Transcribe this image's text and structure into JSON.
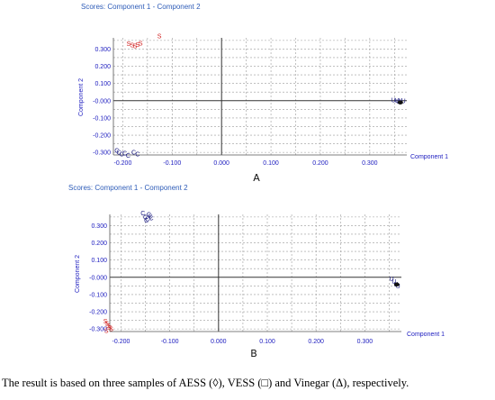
{
  "chart_data": [
    {
      "type": "scatter",
      "title": "Scores: Component 1 - Component 2",
      "xlabel": "Component 1",
      "ylabel": "Component 2",
      "xticks": [
        "-0.200",
        "-0.100",
        "0.000",
        "0.100",
        "0.200",
        "0.300"
      ],
      "yticks": [
        "0.300",
        "0.200",
        "0.100",
        "-0.000",
        "-0.100",
        "-0.200",
        "-0.300"
      ],
      "grid": true,
      "panel_label": "A",
      "series": [
        {
          "marker_text": "S",
          "color": "#d02020",
          "x": [
            -0.188,
            -0.181,
            -0.175,
            -0.17,
            -0.164,
            -0.126
          ],
          "y": [
            0.332,
            0.322,
            0.318,
            0.327,
            0.333,
            0.375
          ]
        },
        {
          "marker_text": "C",
          "color": "#1a1a80",
          "x": [
            -0.212,
            -0.208,
            -0.202,
            -0.196,
            -0.189,
            -0.178,
            -0.17
          ],
          "y": [
            -0.288,
            -0.299,
            -0.31,
            -0.305,
            -0.318,
            -0.3,
            -0.31
          ]
        },
        {
          "marker_text": "U",
          "color": "#1a1a80",
          "x": [
            0.348,
            0.355,
            0.358,
            0.362,
            0.368
          ],
          "y": [
            0.003,
            0.001,
            -0.004,
            0.002,
            -0.001
          ]
        }
      ]
    },
    {
      "type": "scatter",
      "title": "Scores: Component 1 - Component 2",
      "xlabel": "Component 1",
      "ylabel": "Component 2",
      "xticks": [
        "-0.200",
        "-0.100",
        "0.000",
        "0.100",
        "0.200",
        "0.300"
      ],
      "yticks": [
        "0.300",
        "0.200",
        "0.100",
        "-0.000",
        "-0.100",
        "-0.200",
        "-0.300"
      ],
      "grid": true,
      "panel_label": "B",
      "series": [
        {
          "marker_text": "C",
          "color": "#1a1a80",
          "x": [
            -0.155,
            -0.15,
            -0.146,
            -0.143,
            -0.14,
            -0.148,
            -0.138
          ],
          "y": [
            0.372,
            0.35,
            0.34,
            0.365,
            0.355,
            0.33,
            0.345
          ]
        },
        {
          "marker_text": "S",
          "color": "#d02020",
          "x": [
            -0.232,
            -0.229,
            -0.226,
            -0.223,
            -0.22,
            -0.23
          ],
          "y": [
            -0.255,
            -0.268,
            -0.28,
            -0.292,
            -0.3,
            -0.31
          ]
        },
        {
          "marker_text": "U",
          "color": "#1a1a80",
          "x": [
            0.355,
            0.36,
            0.364,
            0.368
          ],
          "y": [
            -0.01,
            -0.025,
            -0.04,
            -0.05
          ]
        }
      ]
    }
  ],
  "caption": "The result is based on three samples of AESS (◊), VESS (□) and Vinegar (Δ), respectively."
}
